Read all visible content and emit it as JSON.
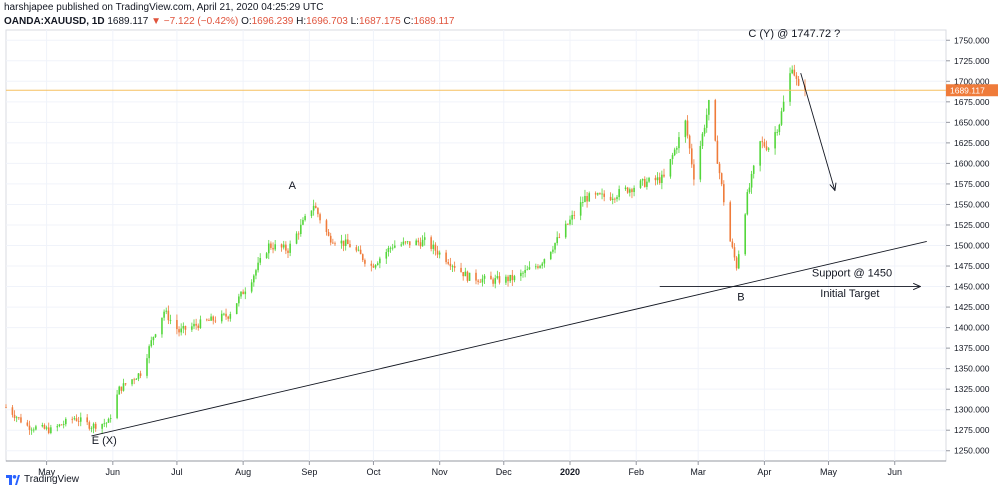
{
  "header": {
    "line1": "harshjapee published on TradingView.com, April 21, 2020 04:25:29 UTC",
    "symbol": "OANDA:XAUUSD, 1D",
    "last": "1689.117",
    "change": "−7.122 (−0.42%)",
    "o_label": "O:",
    "o_value": "1696.239",
    "h_label": "H:",
    "h_value": "1696.703",
    "l_label": "L:",
    "l_value": "1687.175",
    "c_label": "C:",
    "c_value": "1689.117"
  },
  "footer": {
    "brand": "TradingView"
  },
  "colors": {
    "up": "#53d63a",
    "down": "#ef7b3a",
    "price_line": "#f5c060"
  },
  "chart_data": {
    "type": "candlestick",
    "title": "",
    "ylim": [
      1237.5,
      1762.5
    ],
    "yticks": [
      1250,
      1275,
      1300,
      1325,
      1350,
      1375,
      1400,
      1425,
      1450,
      1475,
      1500,
      1525,
      1550,
      1575,
      1600,
      1625,
      1650,
      1675,
      1700,
      1725,
      1750
    ],
    "ytick_labels": [
      "1250.000",
      "1275.000",
      "1300.000",
      "1325.000",
      "1350.000",
      "1375.000",
      "1400.000",
      "1425.000",
      "1450.000",
      "1475.000",
      "1500.000",
      "1525.000",
      "1550.000",
      "1575.000",
      "1600.000",
      "1625.000",
      "1650.000",
      "1675.000",
      "1700.000",
      "1725.000",
      "1750.000"
    ],
    "xlim": [
      "2019-04-12",
      "2020-06-25"
    ],
    "xticks": [
      {
        "date": "2019-05-01",
        "label": "May"
      },
      {
        "date": "2019-06-01",
        "label": "Jun"
      },
      {
        "date": "2019-07-01",
        "label": "Jul"
      },
      {
        "date": "2019-08-01",
        "label": "Aug"
      },
      {
        "date": "2019-09-01",
        "label": "Sep"
      },
      {
        "date": "2019-10-01",
        "label": "Oct"
      },
      {
        "date": "2019-11-01",
        "label": "Nov"
      },
      {
        "date": "2019-12-01",
        "label": "Dec"
      },
      {
        "date": "2020-01-01",
        "label": "2020"
      },
      {
        "date": "2020-02-01",
        "label": "Feb"
      },
      {
        "date": "2020-03-01",
        "label": "Mar"
      },
      {
        "date": "2020-04-01",
        "label": "Apr"
      },
      {
        "date": "2020-05-01",
        "label": "May"
      },
      {
        "date": "2020-06-01",
        "label": "Jun"
      }
    ],
    "last_price": 1689.117,
    "last_price_label": "1689.117",
    "path": [
      [
        "2019-04-12",
        1303
      ],
      [
        "2019-04-22",
        1280
      ],
      [
        "2019-05-03",
        1275
      ],
      [
        "2019-05-14",
        1290
      ],
      [
        "2019-05-22",
        1280
      ],
      [
        "2019-05-30",
        1285
      ],
      [
        "2019-06-04",
        1325
      ],
      [
        "2019-06-14",
        1345
      ],
      [
        "2019-06-20",
        1390
      ],
      [
        "2019-06-25",
        1420
      ],
      [
        "2019-07-02",
        1395
      ],
      [
        "2019-07-12",
        1405
      ],
      [
        "2019-07-25",
        1415
      ],
      [
        "2019-08-05",
        1460
      ],
      [
        "2019-08-13",
        1500
      ],
      [
        "2019-08-22",
        1495
      ],
      [
        "2019-09-03",
        1550
      ],
      [
        "2019-09-10",
        1510
      ],
      [
        "2019-09-20",
        1500
      ],
      [
        "2019-09-30",
        1475
      ],
      [
        "2019-10-10",
        1500
      ],
      [
        "2019-10-25",
        1505
      ],
      [
        "2019-11-06",
        1480
      ],
      [
        "2019-11-14",
        1462
      ],
      [
        "2019-11-25",
        1457
      ],
      [
        "2019-12-06",
        1460
      ],
      [
        "2019-12-18",
        1478
      ],
      [
        "2019-12-27",
        1510
      ],
      [
        "2020-01-08",
        1558
      ],
      [
        "2020-01-20",
        1560
      ],
      [
        "2020-02-03",
        1575
      ],
      [
        "2020-02-14",
        1582
      ],
      [
        "2020-02-24",
        1650
      ],
      [
        "2020-02-28",
        1585
      ],
      [
        "2020-03-06",
        1672
      ],
      [
        "2020-03-16",
        1505
      ],
      [
        "2020-03-19",
        1475
      ],
      [
        "2020-03-24",
        1560
      ],
      [
        "2020-03-30",
        1625
      ],
      [
        "2020-04-03",
        1620
      ],
      [
        "2020-04-08",
        1650
      ],
      [
        "2020-04-14",
        1720
      ],
      [
        "2020-04-17",
        1690
      ],
      [
        "2020-04-20",
        1689.117
      ]
    ],
    "lines": [
      {
        "name": "trendline",
        "from": [
          "2019-05-22",
          1268
        ],
        "to": [
          "2020-06-16",
          1505
        ],
        "arrow": false
      },
      {
        "name": "support-line",
        "from": [
          "2020-02-12",
          1450
        ],
        "to": [
          "2020-06-13",
          1450
        ],
        "arrow": true
      },
      {
        "name": "target-arrow",
        "from": [
          "2020-04-18",
          1710
        ],
        "to": [
          "2020-05-04",
          1567
        ],
        "arrow": true
      }
    ],
    "annotations": [
      {
        "name": "label-a",
        "text": "A",
        "date": "2019-08-24",
        "value": 1569
      },
      {
        "name": "label-b",
        "text": "B",
        "date": "2020-03-21",
        "value": 1433
      },
      {
        "name": "label-cy",
        "text": "C (Y) @ 1747.72 ?",
        "date": "2020-04-15",
        "value": 1754
      },
      {
        "name": "label-ex",
        "text": "E (X)",
        "date": "2019-05-28",
        "value": 1258
      },
      {
        "name": "label-support",
        "text": "Support @ 1450",
        "date": "2020-05-12",
        "value": 1462
      },
      {
        "name": "label-target",
        "text": "Initial Target",
        "date": "2020-05-11",
        "value": 1437
      }
    ]
  }
}
